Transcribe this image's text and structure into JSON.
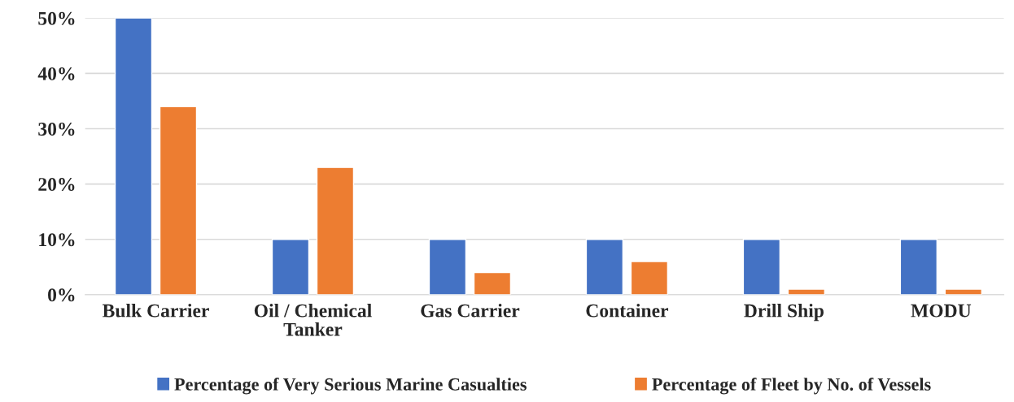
{
  "chart_data": {
    "type": "bar",
    "categories": [
      "Bulk Carrier",
      "Oil / Chemical\nTanker",
      "Gas Carrier",
      "Container",
      "Drill Ship",
      "MODU"
    ],
    "series": [
      {
        "name": "Percentage of Very Serious Marine Casualties",
        "color": "#4472c4",
        "values": [
          50,
          10,
          10,
          10,
          10,
          10
        ]
      },
      {
        "name": "Percentage of Fleet by No. of Vessels",
        "color": "#ed7d31",
        "values": [
          34,
          23,
          4,
          6,
          1,
          1
        ]
      }
    ],
    "ylim": [
      0,
      50
    ],
    "yticks": [
      {
        "value": 0,
        "label": "0%"
      },
      {
        "value": 10,
        "label": "10%"
      },
      {
        "value": 20,
        "label": "20%"
      },
      {
        "value": 30,
        "label": "30%"
      },
      {
        "value": 40,
        "label": "40%"
      },
      {
        "value": 50,
        "label": "50%"
      }
    ],
    "grid": "y",
    "legend": "bottom"
  }
}
